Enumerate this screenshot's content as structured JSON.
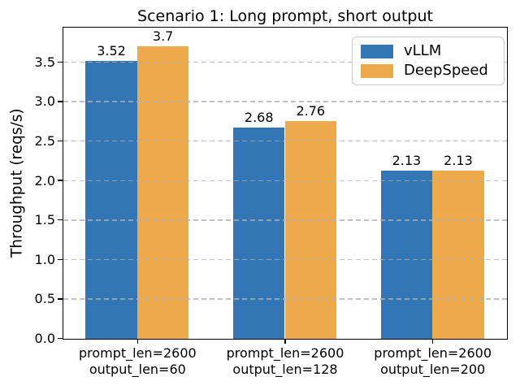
{
  "chart_data": {
    "type": "bar",
    "title": "Scenario 1: Long prompt, short output",
    "ylabel": "Throughput (reqs/s)",
    "xlabel": "",
    "categories": [
      {
        "line1": "prompt_len=2600",
        "line2": "output_len=60"
      },
      {
        "line1": "prompt_len=2600",
        "line2": "output_len=128"
      },
      {
        "line1": "prompt_len=2600",
        "line2": "output_len=200"
      }
    ],
    "series": [
      {
        "name": "vLLM",
        "color": "#3376b5",
        "values": [
          3.52,
          2.68,
          2.13
        ],
        "labels": [
          "3.52",
          "2.68",
          "2.13"
        ]
      },
      {
        "name": "DeepSpeed",
        "color": "#eda94a",
        "values": [
          3.7,
          2.76,
          2.13
        ],
        "labels": [
          "3.7",
          "2.76",
          "2.13"
        ]
      }
    ],
    "yticks": [
      0.0,
      0.5,
      1.0,
      1.5,
      2.0,
      2.5,
      3.0,
      3.5
    ],
    "ytick_labels": [
      "0.0",
      "0.5",
      "1.0",
      "1.5",
      "2.0",
      "2.5",
      "3.0",
      "3.5"
    ],
    "ylim": [
      0,
      3.93
    ],
    "bar_width_frac": 0.35,
    "grid": "horizontal-dashed",
    "grid_color": "#b0b0b0",
    "legend_position": "upper right"
  }
}
